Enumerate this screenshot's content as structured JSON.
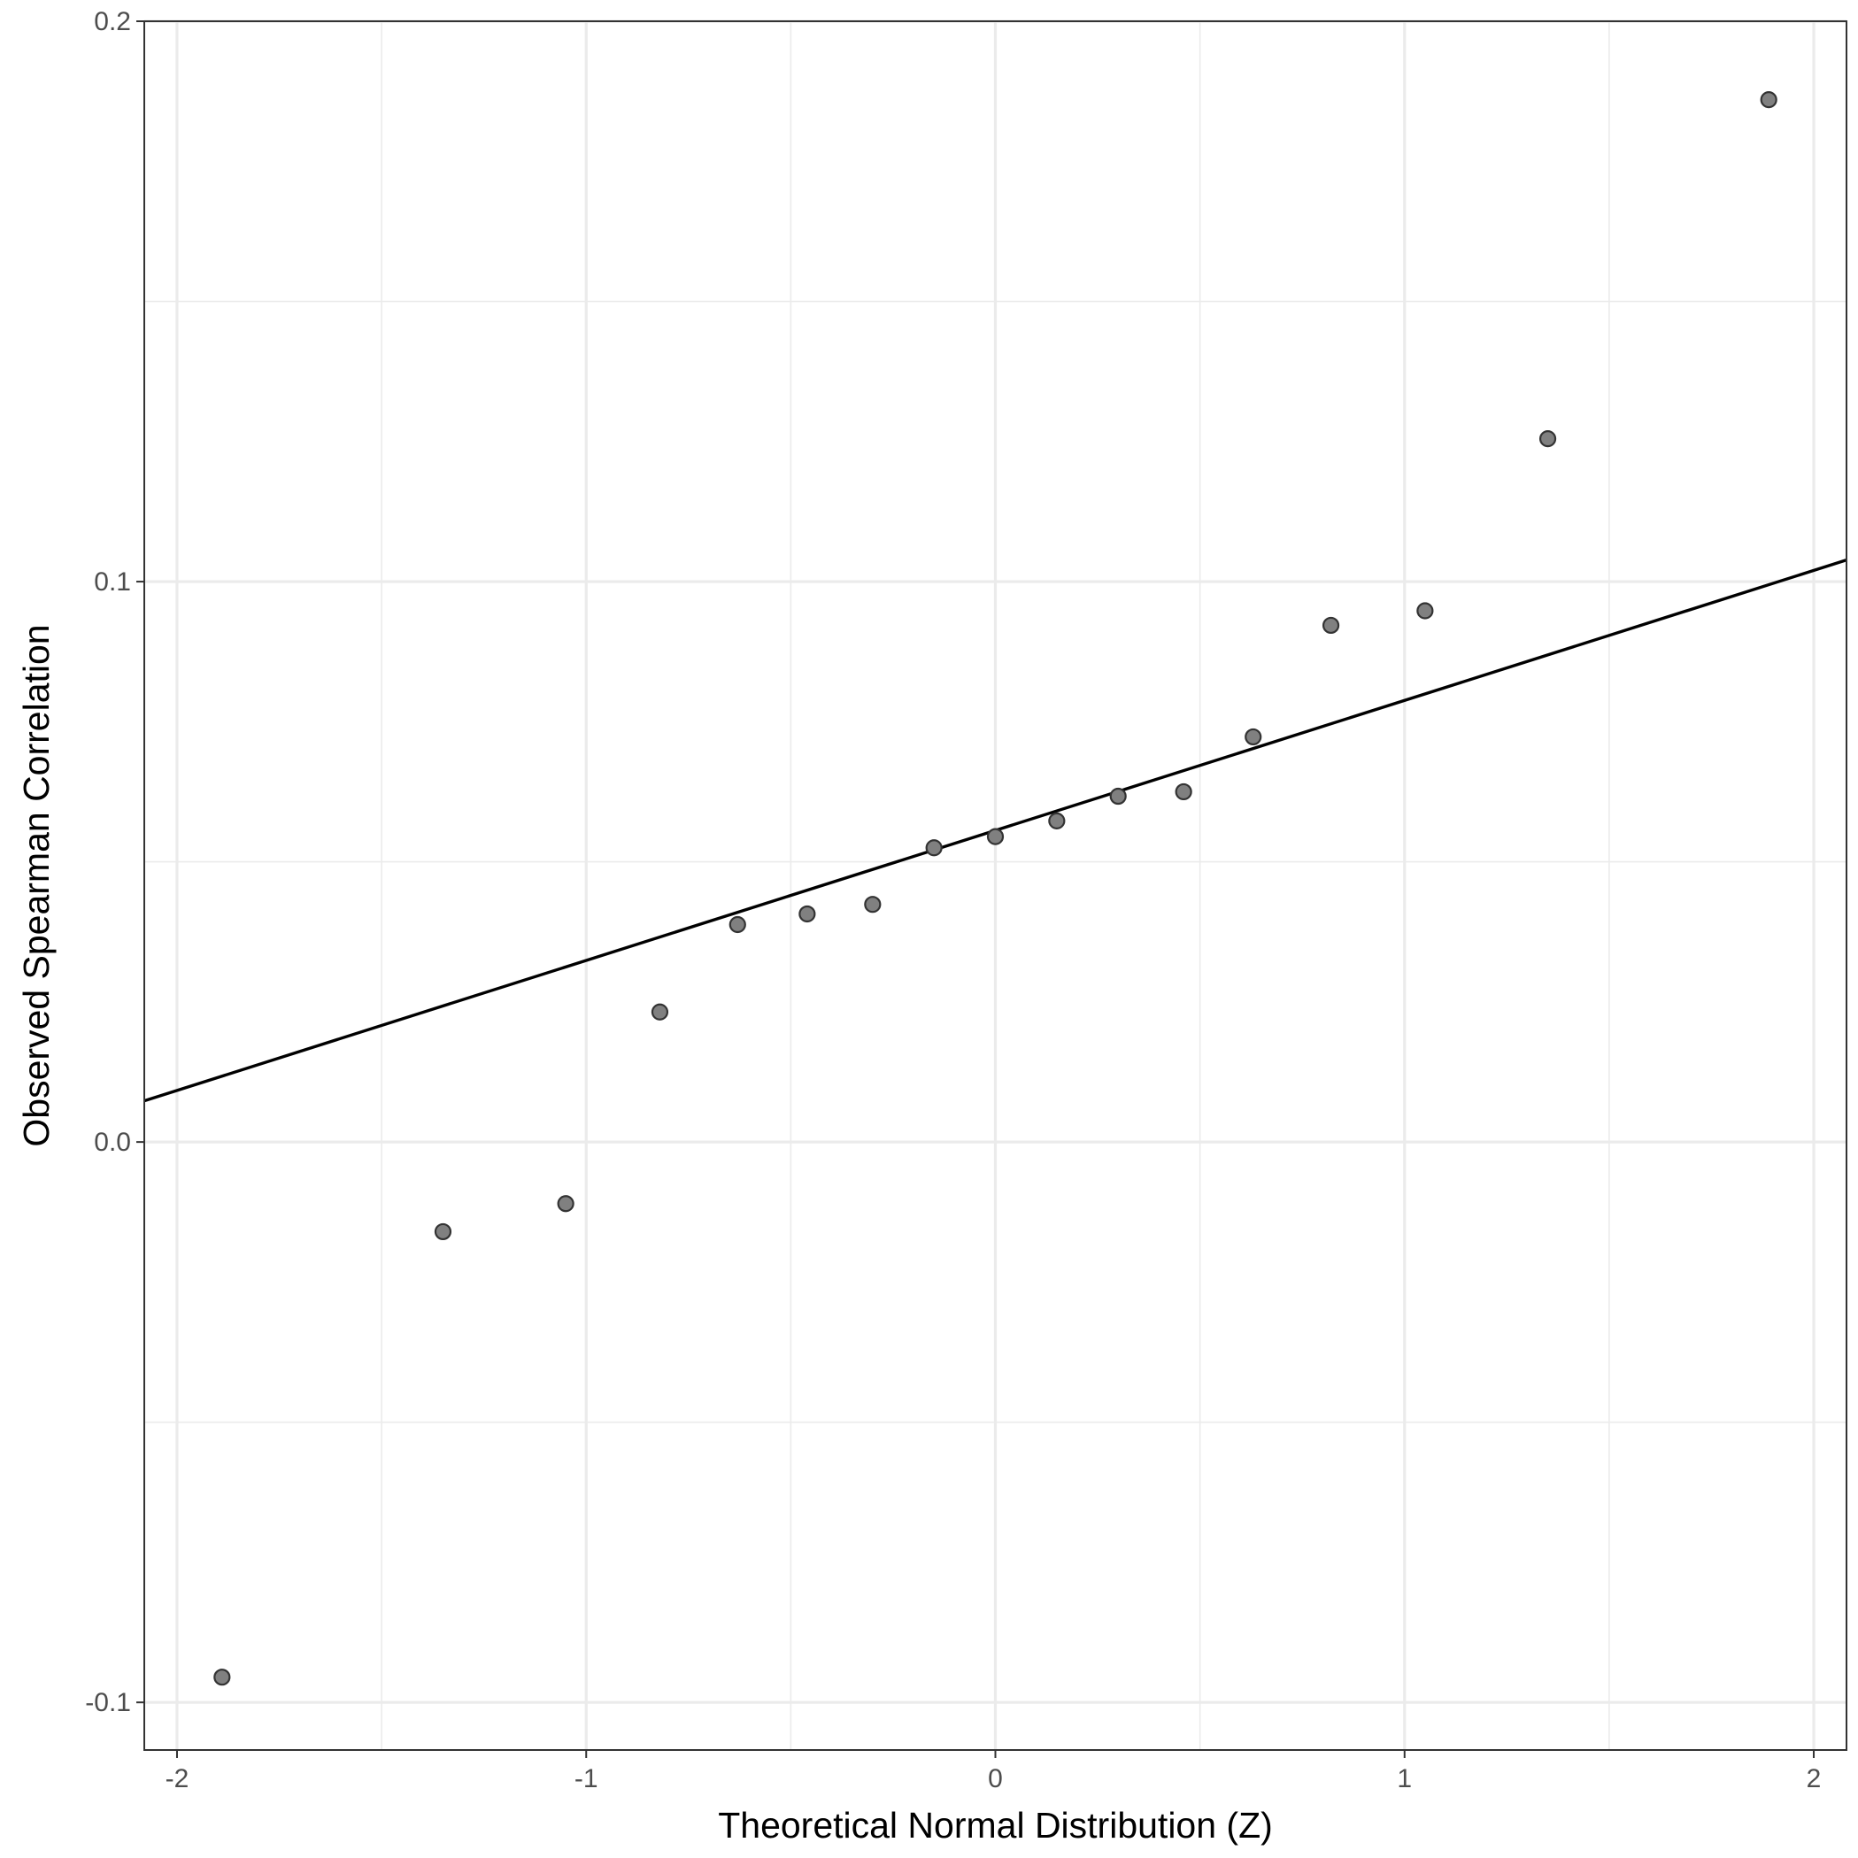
{
  "chart_data": {
    "type": "scatter",
    "title": "",
    "xlabel": "Theoretical Normal Distribution (Z)",
    "ylabel": "Observed Spearman Correlation",
    "xlim": [
      -2.08,
      2.08
    ],
    "ylim": [
      -0.1085,
      0.2
    ],
    "x_ticks": [
      -2,
      -1,
      0,
      1,
      2
    ],
    "x_tick_labels": [
      "-2",
      "-1",
      "0",
      "1",
      "2"
    ],
    "y_ticks": [
      -0.1,
      0.0,
      0.1,
      0.2
    ],
    "y_tick_labels": [
      "-0.1",
      "0.0",
      "0.1",
      "0.2"
    ],
    "grid": true,
    "legend": "none",
    "series": [
      {
        "marker": "circle",
        "x": [
          -1.89,
          -1.35,
          -1.05,
          -0.82,
          -0.63,
          -0.46,
          -0.3,
          -0.15,
          0.0,
          0.15,
          0.3,
          0.46,
          0.63,
          0.82,
          1.05,
          1.35,
          1.89
        ],
        "y": [
          -0.0955,
          -0.016,
          -0.011,
          0.0232,
          0.0388,
          0.0407,
          0.0424,
          0.0525,
          0.0545,
          0.0573,
          0.0617,
          0.0625,
          0.0723,
          0.0922,
          0.0948,
          0.1255,
          0.186
        ]
      }
    ],
    "reference_line": {
      "type": "qq-line",
      "slope": 0.0232,
      "intercept": 0.0556
    },
    "colors": {
      "point_fill": "#808080",
      "point_stroke": "#333333",
      "line": "#000000",
      "grid": "#ebebeb",
      "panel_border": "#333333",
      "tick_text": "#4d4d4d"
    }
  }
}
